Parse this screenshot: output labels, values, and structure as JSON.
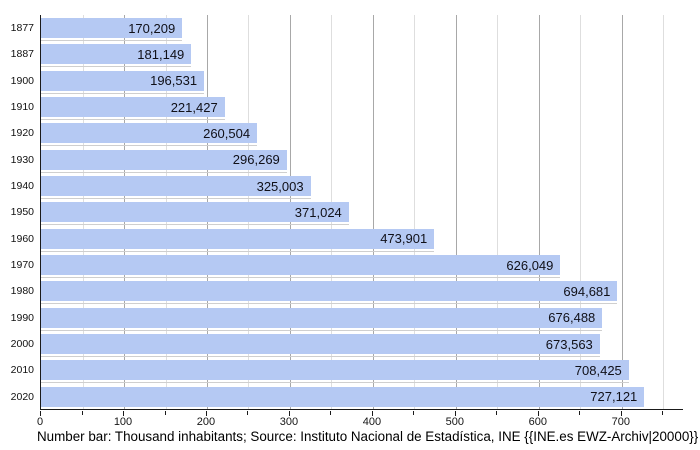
{
  "chart_data": {
    "type": "bar",
    "orientation": "horizontal",
    "title": "",
    "categories": [
      "1877",
      "1887",
      "1900",
      "1910",
      "1920",
      "1930",
      "1940",
      "1950",
      "1960",
      "1970",
      "1980",
      "1990",
      "2000",
      "2010",
      "2020"
    ],
    "values": [
      170209,
      181149,
      196531,
      221427,
      260504,
      296269,
      325003,
      371024,
      473901,
      626049,
      694681,
      676488,
      673563,
      708425,
      727121
    ],
    "value_labels": [
      "170,209",
      "181,149",
      "196,531",
      "221,427",
      "260,504",
      "296,269",
      "325,003",
      "371,024",
      "473,901",
      "626,049",
      "694,681",
      "676,488",
      "673,563",
      "708,425",
      "727,121"
    ],
    "xlabel": "",
    "ylabel": "",
    "xlim": [
      0,
      775
    ],
    "x_major_ticks": [
      0,
      100,
      200,
      300,
      400,
      500,
      600,
      700
    ],
    "x_minor_tick_step": 50,
    "x_minor_tick_max": 750,
    "grid": "vertical",
    "legend": "none",
    "caption": "Number bar: Thousand inhabitants; Source: Instituto Nacional de Estadística, INE {{INE.es EWZ-Archiv|20000}}"
  },
  "colors": {
    "bar_fill": "#b5c9f3",
    "grid_major": "#a8a8a8",
    "grid_minor": "#dedede",
    "axis_line": "#1a1a1a",
    "label_text": "#111111",
    "background": "#ffffff"
  }
}
